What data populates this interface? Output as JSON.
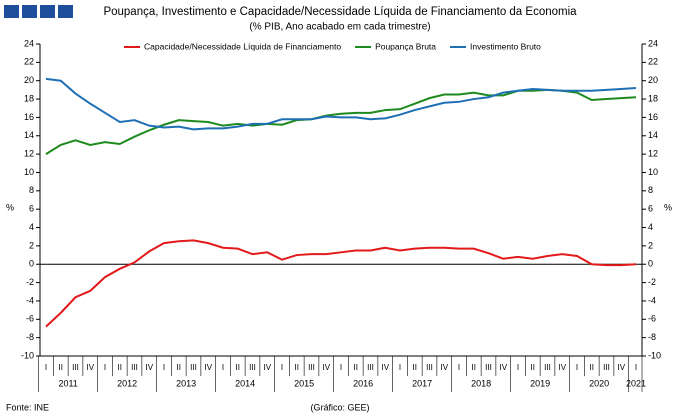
{
  "chart_data": {
    "type": "line",
    "title": "Poupança, Investimento e Capacidade/Necessidade Líquida de Financiamento da Economia",
    "subtitle": "(% PIB, Ano acabado em cada trimestre)",
    "ylabel": "%",
    "y2label": "%",
    "source": "Fonte: INE",
    "credit": "(Gráfico: GEE)",
    "categories": [
      "I",
      "II",
      "III",
      "IV",
      "I",
      "II",
      "III",
      "IV",
      "I",
      "II",
      "III",
      "IV",
      "I",
      "II",
      "III",
      "IV",
      "I",
      "II",
      "III",
      "IV",
      "I",
      "II",
      "III",
      "IV",
      "I",
      "II",
      "III",
      "IV",
      "I",
      "II",
      "III",
      "IV",
      "I",
      "II",
      "III",
      "IV",
      "I",
      "II",
      "III",
      "IV",
      "I"
    ],
    "years": [
      "2011",
      "2012",
      "2013",
      "2014",
      "2015",
      "2016",
      "2017",
      "2018",
      "2019",
      "2020",
      "2021"
    ],
    "series": [
      {
        "name": "Capacidade/Necessidade Líquida de Financiamento",
        "color": "#e31a1c",
        "values": [
          -6.8,
          -5.3,
          -3.6,
          -2.9,
          -1.4,
          -0.5,
          0.2,
          1.4,
          2.3,
          2.5,
          2.6,
          2.3,
          1.8,
          1.7,
          1.1,
          1.3,
          0.5,
          1.0,
          1.1,
          1.1,
          1.3,
          1.5,
          1.5,
          1.8,
          1.5,
          1.7,
          1.8,
          1.8,
          1.7,
          1.7,
          1.2,
          0.6,
          0.8,
          0.6,
          0.9,
          1.1,
          0.9,
          0.0,
          -0.1,
          -0.1,
          0.0
        ]
      },
      {
        "name": "Poupança Bruta",
        "color": "#1e8a1e",
        "values": [
          12.0,
          13.0,
          13.5,
          13.0,
          13.3,
          13.1,
          13.9,
          14.6,
          15.2,
          15.7,
          15.6,
          15.5,
          15.1,
          15.3,
          15.1,
          15.3,
          15.2,
          15.7,
          15.8,
          16.2,
          16.4,
          16.5,
          16.5,
          16.8,
          16.9,
          17.5,
          18.1,
          18.5,
          18.5,
          18.7,
          18.4,
          18.4,
          18.9,
          18.9,
          19.0,
          18.9,
          18.7,
          17.9,
          18.0,
          18.1,
          18.2
        ]
      },
      {
        "name": "Investimento Bruto",
        "color": "#1f6fb5",
        "values": [
          20.2,
          20.0,
          18.6,
          17.5,
          16.5,
          15.5,
          15.7,
          15.1,
          14.9,
          15.0,
          14.7,
          14.8,
          14.8,
          15.0,
          15.3,
          15.3,
          15.8,
          15.8,
          15.8,
          16.1,
          16.0,
          16.0,
          15.8,
          15.9,
          16.3,
          16.8,
          17.2,
          17.6,
          17.7,
          18.0,
          18.2,
          18.7,
          18.9,
          19.1,
          19.0,
          18.9,
          18.9,
          18.9,
          19.0,
          19.1,
          19.2
        ]
      }
    ],
    "ylim": [
      -10,
      24
    ],
    "yticks": [
      -10,
      -8,
      -6,
      -4,
      -2,
      0,
      2,
      4,
      6,
      8,
      10,
      12,
      14,
      16,
      18,
      20,
      22,
      24
    ],
    "y2lim": [
      -10,
      24
    ],
    "y2ticks": [
      -10,
      -8,
      -6,
      -4,
      -2,
      0,
      2,
      4,
      6,
      8,
      10,
      12,
      14,
      16,
      18,
      20,
      22,
      24
    ],
    "grid": false,
    "legend": "top"
  }
}
